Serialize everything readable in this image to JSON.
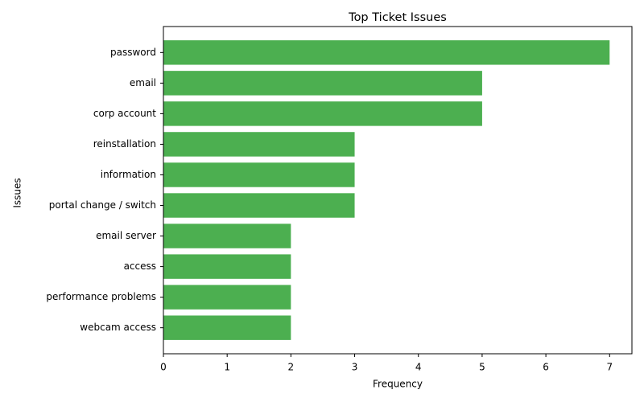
{
  "chart_data": {
    "type": "barh",
    "title": "Top Ticket Issues",
    "xlabel": "Frequency",
    "ylabel": "Issues",
    "categories": [
      "password",
      "email",
      "corp account",
      "reinstallation",
      "information",
      "portal change / switch",
      "email server",
      "access",
      "performance problems",
      "webcam access"
    ],
    "values": [
      7,
      5,
      5,
      3,
      3,
      3,
      2,
      2,
      2,
      2
    ],
    "color": "#4caf50",
    "xlim": [
      0,
      7.35
    ],
    "xticks": [
      0,
      1,
      2,
      3,
      4,
      5,
      6,
      7
    ],
    "grid": false
  }
}
